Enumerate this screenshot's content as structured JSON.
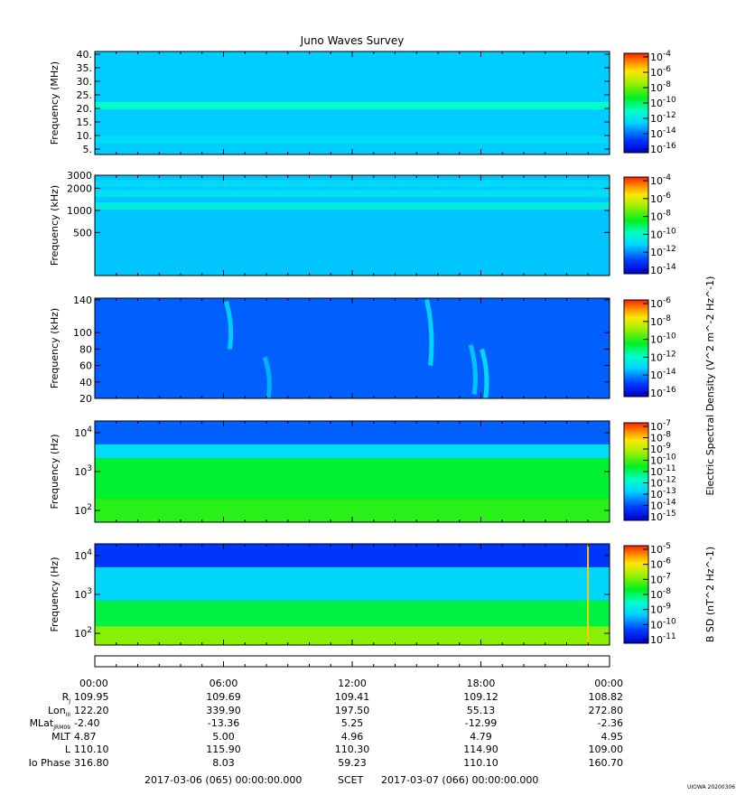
{
  "title": "Juno Waves Survey",
  "chart_data": [
    {
      "type": "heatmap",
      "panel": "hfr-high",
      "ylabel": "Frequency (MHz)",
      "yticks": [
        "5.",
        "10.",
        "15.",
        "20.",
        "25.",
        "30.",
        "35.",
        "40."
      ],
      "ylim": [
        3,
        41
      ],
      "colorbar": {
        "labels": [
          "10^-4",
          "10^-6",
          "10^-8",
          "10^-10",
          "10^-12",
          "10^-14",
          "10^-16"
        ],
        "range": [
          -17,
          -4
        ]
      },
      "background_level": -13.2,
      "features": [
        {
          "kind": "band",
          "at": 21,
          "level": -11.6
        },
        {
          "kind": "band",
          "at": 8.5,
          "level": -12.8
        }
      ]
    },
    {
      "type": "heatmap",
      "panel": "hfr-low",
      "ylabel": "Frequency (kHz)",
      "yticks": [
        "500",
        "1000",
        "2000",
        "3000"
      ],
      "ylim": [
        130,
        3000
      ],
      "colorbar": {
        "labels": [
          "10^-4",
          "10^-6",
          "10^-8",
          "10^-10",
          "10^-12",
          "10^-14"
        ],
        "range": [
          -15,
          -3
        ]
      },
      "background_level": -11.6,
      "features": [
        {
          "kind": "band",
          "at": 1150,
          "level": -10.6
        },
        {
          "kind": "band",
          "at": 1700,
          "level": -11.0
        },
        {
          "kind": "band",
          "at": 2300,
          "level": -11.2
        }
      ]
    },
    {
      "type": "heatmap",
      "panel": "lfr-high",
      "ylabel": "Frequency (kHz)",
      "yticks": [
        "20",
        "40",
        "60",
        "80",
        "100",
        "140"
      ],
      "ylim": [
        20,
        142
      ],
      "colorbar": {
        "labels": [
          "10^-6",
          "10^-8",
          "10^-10",
          "10^-12",
          "10^-14",
          "10^-16"
        ],
        "range": [
          -16.5,
          -5.5
        ]
      },
      "background_level": -14.6,
      "features": [
        {
          "kind": "burst",
          "t": 0.255,
          "from": 80,
          "to": 138,
          "level": -13.3
        },
        {
          "kind": "burst",
          "t": 0.33,
          "from": 20,
          "to": 70,
          "level": -13.6
        },
        {
          "kind": "burst",
          "t": 0.645,
          "from": 60,
          "to": 140,
          "level": -13.2
        },
        {
          "kind": "burst",
          "t": 0.73,
          "from": 25,
          "to": 85,
          "level": -13.4
        },
        {
          "kind": "burst",
          "t": 0.752,
          "from": 20,
          "to": 80,
          "level": -13.1
        }
      ]
    },
    {
      "type": "heatmap",
      "panel": "lfr-low",
      "ylabel": "Frequency (Hz)",
      "yticks": [
        "10^2",
        "10^3",
        "10^4"
      ],
      "ylim": [
        50,
        20000
      ],
      "colorbar": {
        "labels": [
          "10^-7",
          "10^-8",
          "10^-9",
          "10^-10",
          "10^-11",
          "10^-12",
          "10^-13",
          "10^-14",
          "10^-15"
        ],
        "range": [
          -15,
          -7
        ]
      },
      "background_level": -13.6,
      "features": [
        {
          "kind": "band",
          "from": 2200,
          "to": 5000,
          "level": -12.4
        },
        {
          "kind": "band",
          "from": 200,
          "to": 2200,
          "level": -10.7
        },
        {
          "kind": "band",
          "from": 50,
          "to": 200,
          "level": -10.3
        }
      ]
    },
    {
      "type": "heatmap",
      "panel": "magnetic",
      "ylabel": "Frequency (Hz)",
      "yticks": [
        "10^2",
        "10^3",
        "10^4"
      ],
      "ylim": [
        50,
        20000
      ],
      "colorbar": {
        "label": "B SD (nT^2 Hz^-1)",
        "labels": [
          "10^-5",
          "10^-6",
          "10^-7",
          "10^-8",
          "10^-9",
          "10^-10",
          "10^-11"
        ],
        "range": [
          -11,
          -4.5
        ]
      },
      "background_level": -9.5,
      "features": [
        {
          "kind": "band",
          "from": 5000,
          "to": 20000,
          "level": -10.2
        },
        {
          "kind": "band",
          "from": 700,
          "to": 5000,
          "level": -9.0
        },
        {
          "kind": "band",
          "from": 150,
          "to": 700,
          "level": -7.6
        },
        {
          "kind": "band",
          "from": 50,
          "to": 150,
          "level": -6.6
        },
        {
          "kind": "spike",
          "t": 0.958,
          "level": -5.5
        }
      ]
    }
  ],
  "colorbar_label": "Electric Spectral Density (V^2 m^-2 Hz^-1)",
  "ephemeris": {
    "row_labels": [
      "R_J",
      "Lon_III",
      "MLat_JRM09",
      "MLT",
      "L",
      "Io Phase"
    ],
    "columns": [
      {
        "time": "00:00",
        "values": [
          "109.95",
          "122.20",
          "-2.40",
          "4.87",
          "110.10",
          "316.80"
        ]
      },
      {
        "time": "06:00",
        "values": [
          "109.69",
          "339.90",
          "-13.36",
          "5.00",
          "115.90",
          "8.03"
        ]
      },
      {
        "time": "12:00",
        "values": [
          "109.41",
          "197.50",
          "5.25",
          "4.96",
          "110.30",
          "59.23"
        ]
      },
      {
        "time": "18:00",
        "values": [
          "109.12",
          "55.13",
          "-12.99",
          "4.79",
          "114.90",
          "110.10"
        ]
      },
      {
        "time": "00:00",
        "values": [
          "108.82",
          "272.80",
          "-2.36",
          "4.95",
          "109.00",
          "160.70"
        ]
      }
    ]
  },
  "time_range": {
    "start": "2017-03-06 (065) 00:00:00.000",
    "label": "SCET",
    "end": "2017-03-07 (066) 00:00:00.000"
  },
  "stamp": "UIOWA 20200306"
}
